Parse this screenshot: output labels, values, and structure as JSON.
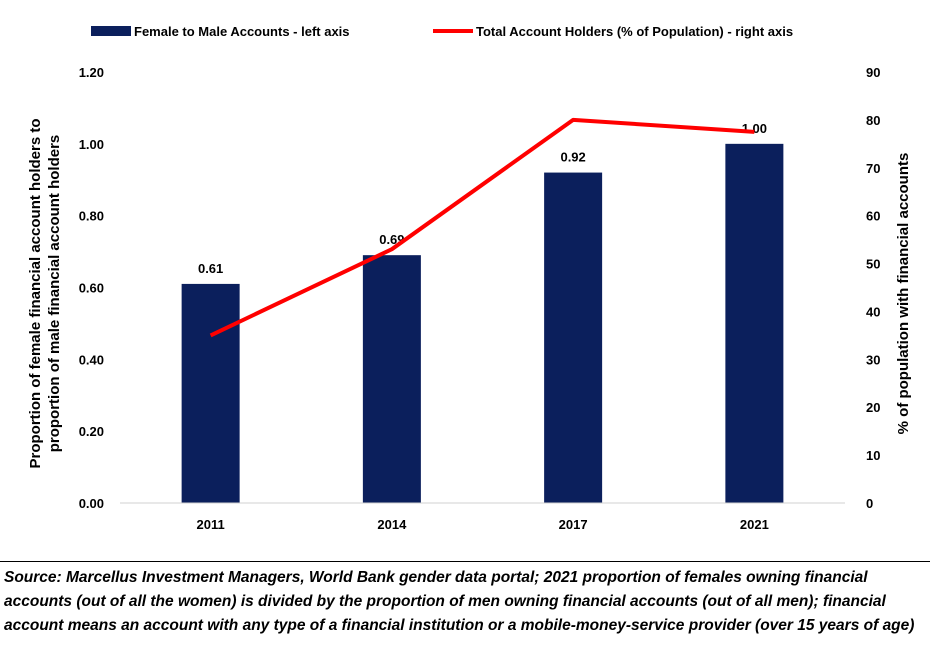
{
  "legend": {
    "bar_label": "Female to Male Accounts - left axis",
    "line_label": "Total Account Holders (% of Population) - right axis"
  },
  "colors": {
    "bar": "#0b1f5c",
    "line": "#ff0000"
  },
  "chart_data": {
    "type": "bar",
    "categories": [
      "2011",
      "2014",
      "2017",
      "2021"
    ],
    "series": [
      {
        "name": "Female to Male Accounts - left axis",
        "type": "bar",
        "axis": "left",
        "values": [
          0.61,
          0.69,
          0.92,
          1.0
        ],
        "labels": [
          "0.61",
          "0.69",
          "0.92",
          "1.00"
        ]
      },
      {
        "name": "Total Account Holders (% of Population) - right axis",
        "type": "line",
        "axis": "right",
        "values": [
          35,
          53,
          80,
          77.5
        ]
      }
    ],
    "ylabel": "Proportion of female financial account holders to proportion of male financial account holders",
    "ylabel_lines": [
      "Proportion of female financial account holders to",
      "proportion of male financial account holders"
    ],
    "y2label": "% of population with financial accounts",
    "ylim": [
      0,
      1.2
    ],
    "y2lim": [
      0,
      90
    ],
    "yticks": [
      "0.00",
      "0.20",
      "0.40",
      "0.60",
      "0.80",
      "1.00",
      "1.20"
    ],
    "y2ticks": [
      "0",
      "10",
      "20",
      "30",
      "40",
      "50",
      "60",
      "70",
      "80",
      "90"
    ],
    "legend_position": "top"
  },
  "footnote": "Source: Marcellus Investment Managers, World Bank gender data portal; 2021 proportion of females owning financial accounts (out of all the women) is divided by the proportion of men owning financial accounts (out of all men); financial account means an account with any type of a financial institution or a mobile-money-service provider (over 15 years of age)"
}
